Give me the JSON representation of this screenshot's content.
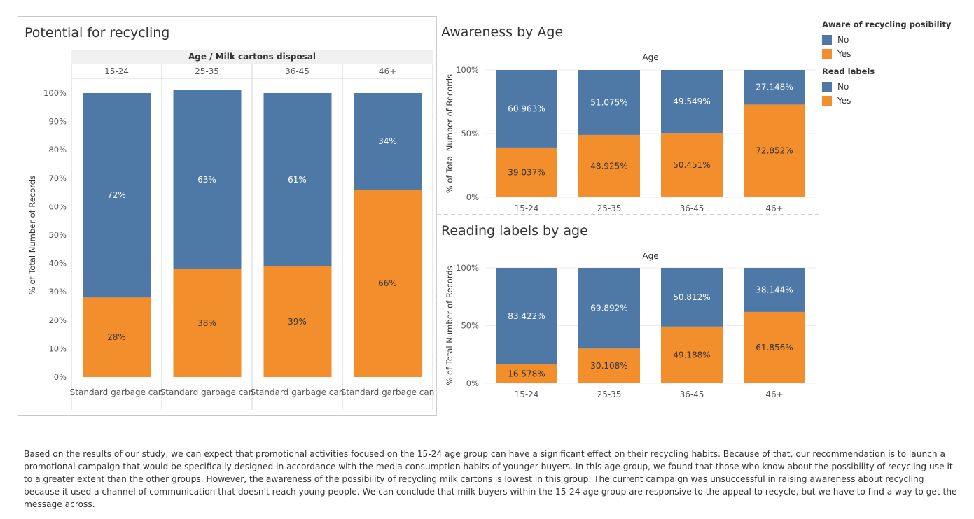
{
  "colors": {
    "no": "#4e79a7",
    "yes": "#f28e2b"
  },
  "potential": {
    "title": "Potential for recycling",
    "header": "Age / Milk cartons disposal",
    "bar_label": "Standard garbage can"
  },
  "awareness": {
    "title": "Awareness by Age",
    "header": "Age"
  },
  "reading": {
    "title": "Reading labels by age",
    "header": "Age"
  },
  "legend": {
    "groups": [
      {
        "title": "Aware of recycling posibility",
        "items": [
          {
            "label": "No",
            "key": "no"
          },
          {
            "label": "Yes",
            "key": "yes"
          }
        ]
      },
      {
        "title": "Read labels",
        "items": [
          {
            "label": "No",
            "key": "no"
          },
          {
            "label": "Yes",
            "key": "yes"
          }
        ]
      }
    ]
  },
  "chart_data": [
    {
      "type": "bar",
      "stacked": true,
      "title": "Potential for recycling",
      "header": "Age / Milk cartons disposal",
      "categories": [
        "15-24",
        "25-35",
        "36-45",
        "46+"
      ],
      "ylabel": "% of Total Number of Records",
      "ylim": [
        0,
        100
      ],
      "yticks": [
        "0%",
        "10%",
        "20%",
        "30%",
        "40%",
        "50%",
        "60%",
        "70%",
        "80%",
        "90%",
        "100%"
      ],
      "series": [
        {
          "color_key": "yes",
          "values": [
            28,
            38,
            39,
            66
          ],
          "labels": [
            "28%",
            "38%",
            "39%",
            "66%"
          ]
        },
        {
          "color_key": "no",
          "values": [
            72,
            63,
            61,
            34
          ],
          "labels": [
            "72%",
            "63%",
            "61%",
            "34%"
          ]
        }
      ]
    },
    {
      "type": "bar",
      "stacked": true,
      "title": "Awareness by Age",
      "header": "Age",
      "categories": [
        "15-24",
        "25-35",
        "36-45",
        "46+"
      ],
      "ylabel": "% of Total Number of Records",
      "ylim": [
        0,
        100
      ],
      "yticks": [
        "0%",
        "50%",
        "100%"
      ],
      "series": [
        {
          "name": "Yes",
          "color_key": "yes",
          "values": [
            39.037,
            48.925,
            50.451,
            72.852
          ],
          "labels": [
            "39.037%",
            "48.925%",
            "50.451%",
            "72.852%"
          ]
        },
        {
          "name": "No",
          "color_key": "no",
          "values": [
            60.963,
            51.075,
            49.549,
            27.148
          ],
          "labels": [
            "60.963%",
            "51.075%",
            "49.549%",
            "27.148%"
          ]
        }
      ]
    },
    {
      "type": "bar",
      "stacked": true,
      "title": "Reading labels by age",
      "header": "Age",
      "categories": [
        "15-24",
        "25-35",
        "36-45",
        "46+"
      ],
      "ylabel": "% of Total Number of Records",
      "ylim": [
        0,
        100
      ],
      "yticks": [
        "0%",
        "50%",
        "100%"
      ],
      "series": [
        {
          "name": "Yes",
          "color_key": "yes",
          "values": [
            16.578,
            30.108,
            49.188,
            61.856
          ],
          "labels": [
            "16.578%",
            "30.108%",
            "49.188%",
            "61.856%"
          ]
        },
        {
          "name": "No",
          "color_key": "no",
          "values": [
            83.422,
            69.892,
            50.812,
            38.144
          ],
          "labels": [
            "83.422%",
            "69.892%",
            "50.812%",
            "38.144%"
          ]
        }
      ]
    }
  ],
  "summary": "Based on the results of our study, we can expect that promotional activities focused on the 15-24 age group can have a significant effect on their recycling habits. Because of that, our recommendation is to launch a promotional campaign that would be specifically designed in accordance with the media consumption habits of younger buyers. In this age group, we found that those who know about the possibility of recycling use it to a greater extent than the other groups. However, the awareness of the possibility of recycling milk cartons is lowest in this group. The current campaign was unsuccessful in raising awareness about recycling because it used a channel of communication that doesn't reach young people. We can conclude that milk buyers within the 15-24 age group are responsive to the appeal to recycle, but we have to find a way to get the message across."
}
